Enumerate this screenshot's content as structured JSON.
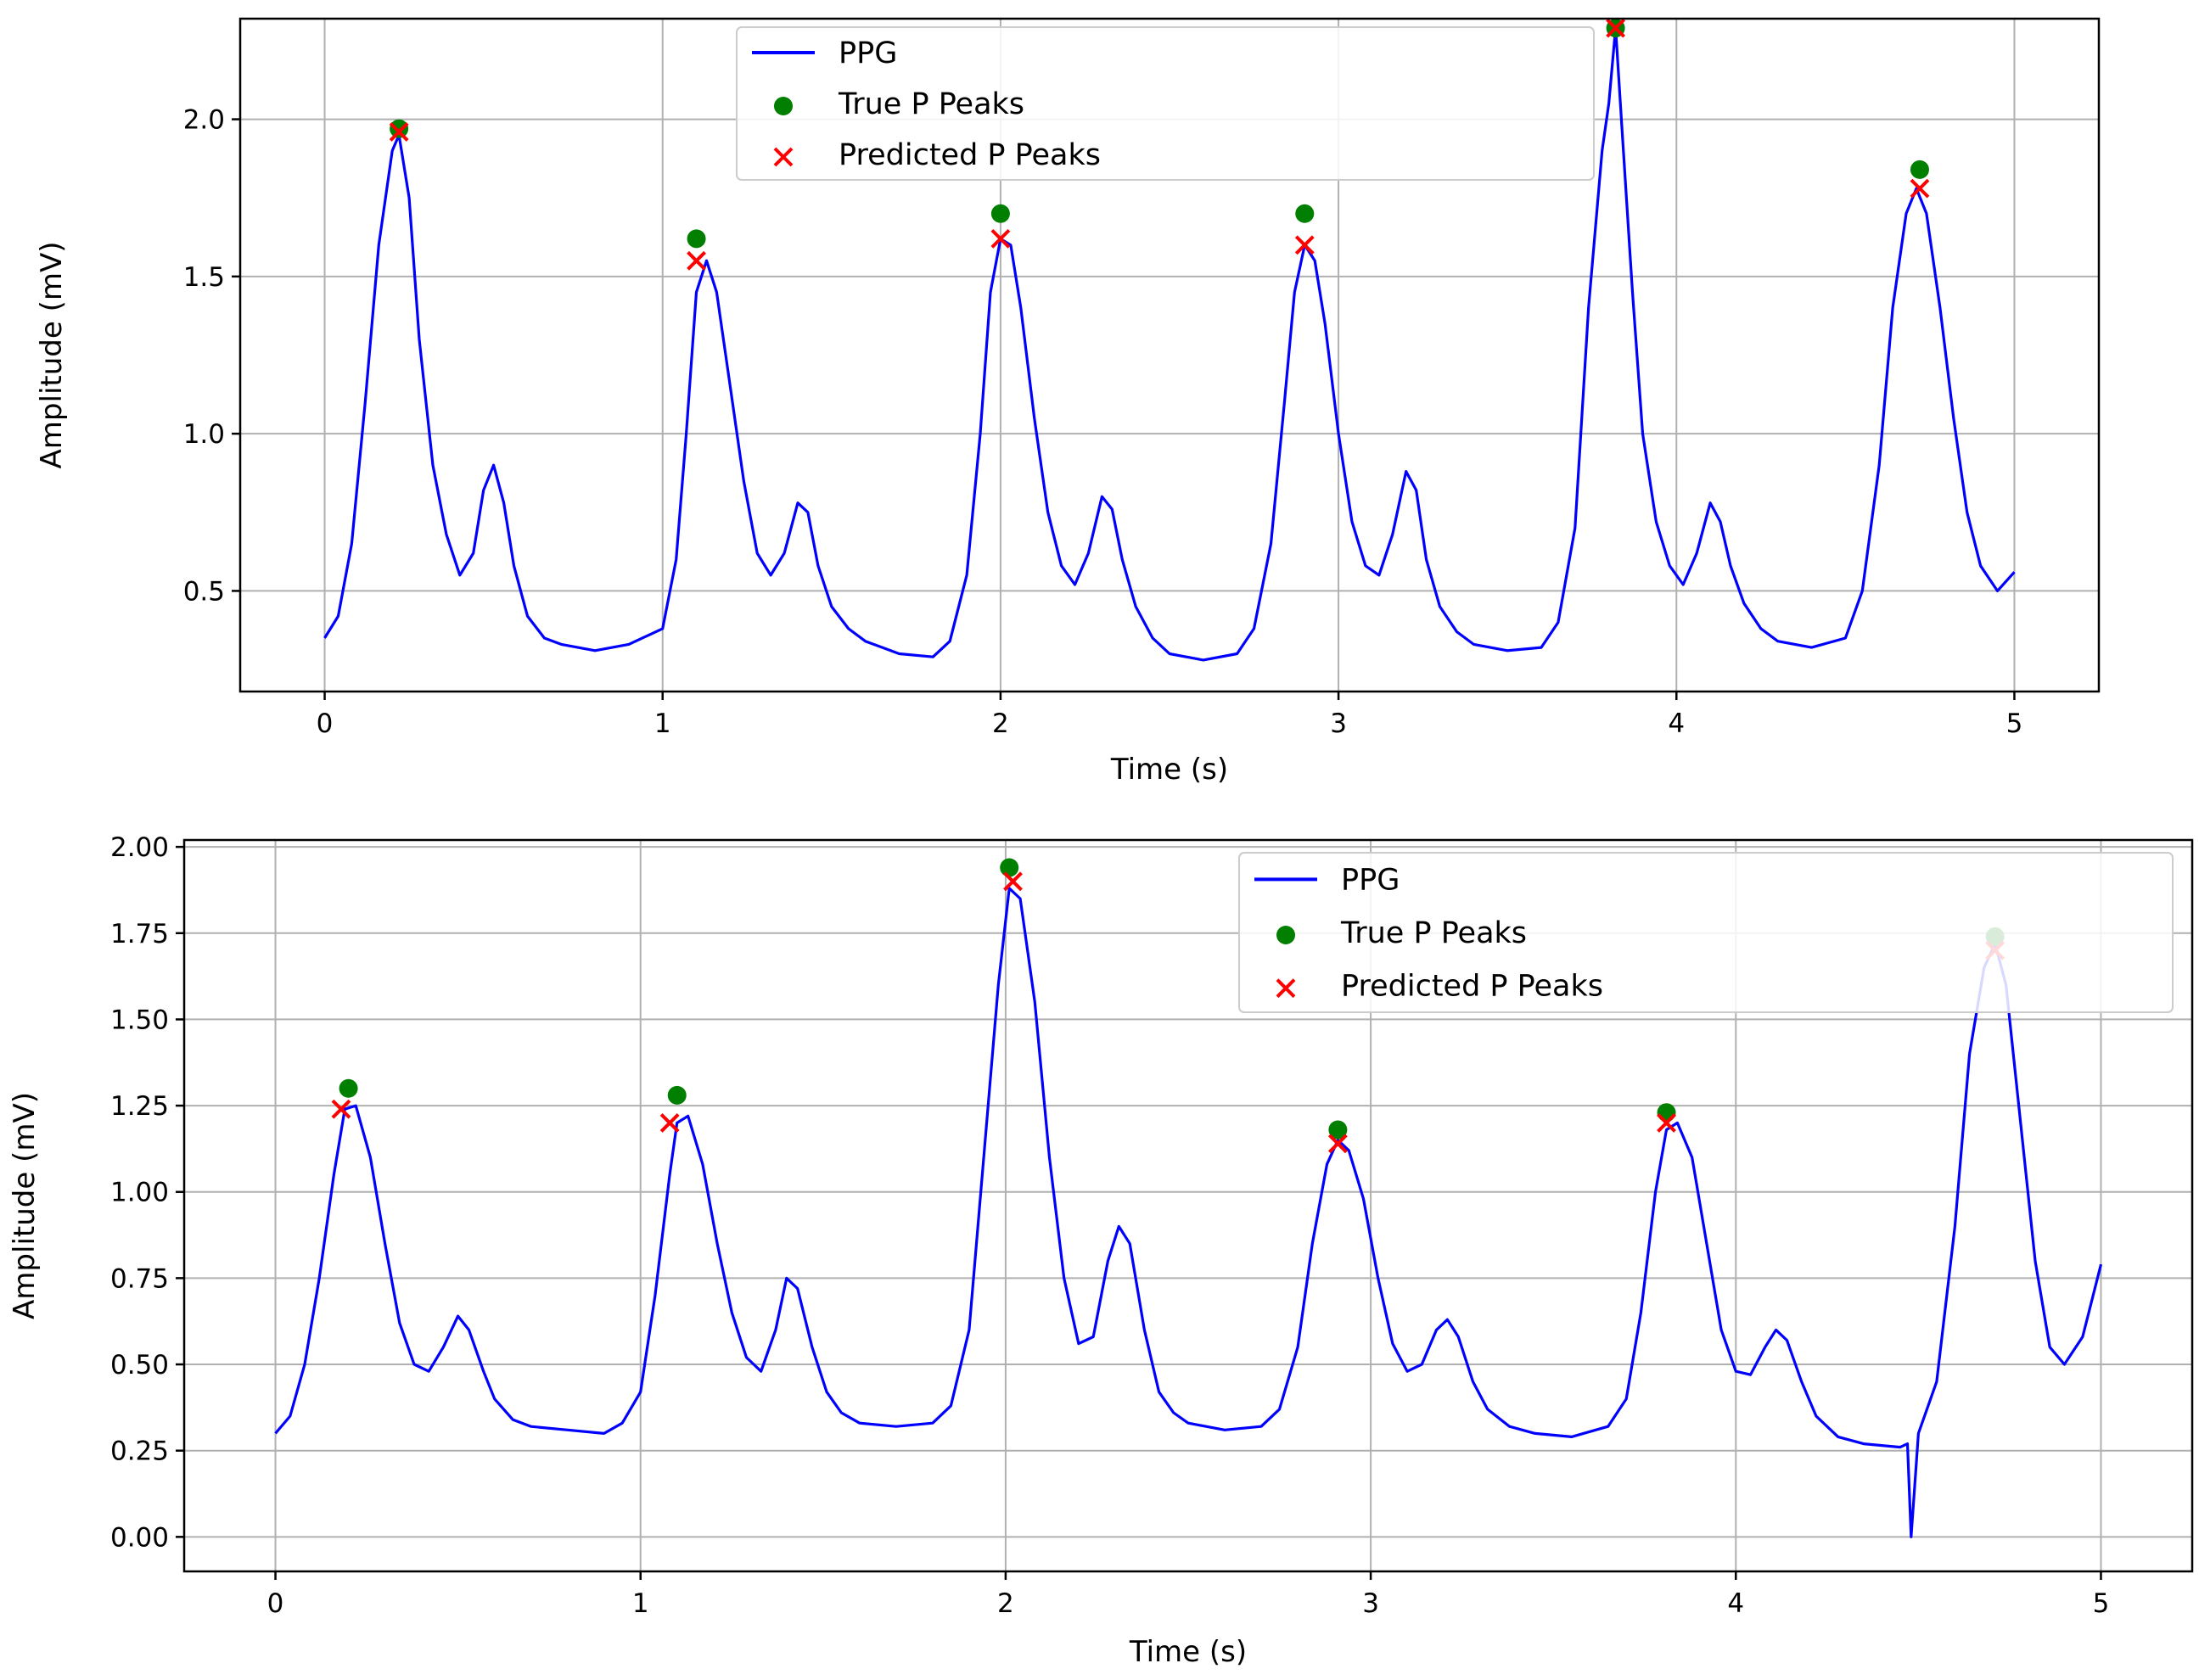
{
  "colors": {
    "ppg_line": "#0000ff",
    "true_peak": "#007f00",
    "predicted_peak": "#ff0000",
    "grid": "#b0b0b0"
  },
  "chart_data": [
    {
      "type": "line",
      "xlabel": "Time (s)",
      "ylabel": "Amplitude (mV)",
      "xlim": [
        -0.25,
        5.25
      ],
      "ylim": [
        0.18,
        2.32
      ],
      "x_ticks": [
        0,
        1,
        2,
        3,
        4,
        5
      ],
      "x_tick_labels": [
        "0",
        "1",
        "2",
        "3",
        "4",
        "5"
      ],
      "y_ticks": [
        0.5,
        1.0,
        1.5,
        2.0
      ],
      "y_tick_labels": [
        "0.5",
        "1.0",
        "1.5",
        "2.0"
      ],
      "grid": true,
      "legend_position": "upper-center",
      "legend": [
        "PPG",
        "True P Peaks",
        "Predicted P Peaks"
      ],
      "series": [
        {
          "name": "PPG",
          "kind": "line",
          "x": [
            0.0,
            0.04,
            0.08,
            0.12,
            0.16,
            0.2,
            0.22,
            0.25,
            0.28,
            0.32,
            0.36,
            0.4,
            0.44,
            0.47,
            0.5,
            0.53,
            0.56,
            0.6,
            0.65,
            0.7,
            0.8,
            0.9,
            1.0,
            1.04,
            1.07,
            1.1,
            1.13,
            1.16,
            1.2,
            1.24,
            1.28,
            1.32,
            1.36,
            1.4,
            1.43,
            1.46,
            1.5,
            1.55,
            1.6,
            1.7,
            1.8,
            1.85,
            1.9,
            1.94,
            1.97,
            2.0,
            2.03,
            2.06,
            2.1,
            2.14,
            2.18,
            2.22,
            2.26,
            2.3,
            2.33,
            2.36,
            2.4,
            2.45,
            2.5,
            2.6,
            2.7,
            2.75,
            2.8,
            2.84,
            2.87,
            2.9,
            2.93,
            2.96,
            3.0,
            3.04,
            3.08,
            3.12,
            3.16,
            3.2,
            3.23,
            3.26,
            3.3,
            3.35,
            3.4,
            3.5,
            3.6,
            3.65,
            3.7,
            3.74,
            3.78,
            3.8,
            3.82,
            3.84,
            3.87,
            3.9,
            3.94,
            3.98,
            4.02,
            4.06,
            4.1,
            4.13,
            4.16,
            4.2,
            4.25,
            4.3,
            4.4,
            4.5,
            4.55,
            4.6,
            4.64,
            4.68,
            4.71,
            4.74,
            4.78,
            4.82,
            4.86,
            4.9,
            4.95,
            5.0
          ],
          "y": [
            0.35,
            0.42,
            0.65,
            1.1,
            1.6,
            1.9,
            1.95,
            1.75,
            1.3,
            0.9,
            0.68,
            0.55,
            0.62,
            0.82,
            0.9,
            0.78,
            0.58,
            0.42,
            0.35,
            0.33,
            0.31,
            0.33,
            0.38,
            0.6,
            1.0,
            1.45,
            1.55,
            1.45,
            1.15,
            0.85,
            0.62,
            0.55,
            0.62,
            0.78,
            0.75,
            0.58,
            0.45,
            0.38,
            0.34,
            0.3,
            0.29,
            0.34,
            0.55,
            1.0,
            1.45,
            1.62,
            1.6,
            1.4,
            1.05,
            0.75,
            0.58,
            0.52,
            0.62,
            0.8,
            0.76,
            0.6,
            0.45,
            0.35,
            0.3,
            0.28,
            0.3,
            0.38,
            0.65,
            1.1,
            1.45,
            1.6,
            1.55,
            1.35,
            1.0,
            0.72,
            0.58,
            0.55,
            0.68,
            0.88,
            0.82,
            0.6,
            0.45,
            0.37,
            0.33,
            0.31,
            0.32,
            0.4,
            0.7,
            1.4,
            1.9,
            2.05,
            2.29,
            1.95,
            1.45,
            1.0,
            0.72,
            0.58,
            0.52,
            0.62,
            0.78,
            0.72,
            0.58,
            0.46,
            0.38,
            0.34,
            0.32,
            0.35,
            0.5,
            0.9,
            1.4,
            1.7,
            1.78,
            1.7,
            1.4,
            1.05,
            0.75,
            0.58,
            0.5,
            0.56
          ]
        },
        {
          "name": "True P Peaks",
          "kind": "scatter",
          "marker": "circle",
          "x": [
            0.22,
            1.1,
            2.0,
            2.9,
            3.82,
            4.72
          ],
          "y": [
            1.97,
            1.62,
            1.7,
            1.7,
            2.29,
            1.84
          ]
        },
        {
          "name": "Predicted P Peaks",
          "kind": "scatter",
          "marker": "x",
          "x": [
            0.22,
            1.1,
            2.0,
            2.9,
            3.82,
            4.72
          ],
          "y": [
            1.96,
            1.55,
            1.62,
            1.6,
            2.29,
            1.78
          ]
        }
      ]
    },
    {
      "type": "line",
      "xlabel": "Time (s)",
      "ylabel": "Amplitude (mV)",
      "xlim": [
        -0.25,
        5.25
      ],
      "ylim": [
        -0.1,
        2.02
      ],
      "x_ticks": [
        0,
        1,
        2,
        3,
        4,
        5
      ],
      "x_tick_labels": [
        "0",
        "1",
        "2",
        "3",
        "4",
        "5"
      ],
      "y_ticks": [
        0.0,
        0.25,
        0.5,
        0.75,
        1.0,
        1.25,
        1.5,
        1.75,
        2.0
      ],
      "y_tick_labels": [
        "0.00",
        "0.25",
        "0.50",
        "0.75",
        "1.00",
        "1.25",
        "1.50",
        "1.75",
        "2.00"
      ],
      "grid": true,
      "legend_position": "upper-right",
      "legend": [
        "PPG",
        "True P Peaks",
        "Predicted P Peaks"
      ],
      "series": [
        {
          "name": "PPG",
          "kind": "line",
          "x": [
            0.0,
            0.04,
            0.08,
            0.12,
            0.16,
            0.19,
            0.22,
            0.26,
            0.3,
            0.34,
            0.38,
            0.42,
            0.46,
            0.5,
            0.53,
            0.57,
            0.6,
            0.65,
            0.7,
            0.8,
            0.9,
            0.95,
            1.0,
            1.04,
            1.08,
            1.1,
            1.13,
            1.17,
            1.21,
            1.25,
            1.29,
            1.33,
            1.37,
            1.4,
            1.43,
            1.47,
            1.51,
            1.55,
            1.6,
            1.7,
            1.8,
            1.85,
            1.9,
            1.94,
            1.98,
            2.01,
            2.04,
            2.08,
            2.12,
            2.16,
            2.2,
            2.24,
            2.28,
            2.31,
            2.34,
            2.38,
            2.42,
            2.46,
            2.5,
            2.6,
            2.7,
            2.75,
            2.8,
            2.84,
            2.88,
            2.91,
            2.94,
            2.98,
            3.02,
            3.06,
            3.1,
            3.14,
            3.18,
            3.21,
            3.24,
            3.28,
            3.32,
            3.38,
            3.45,
            3.55,
            3.65,
            3.7,
            3.74,
            3.78,
            3.81,
            3.84,
            3.88,
            3.92,
            3.96,
            4.0,
            4.04,
            4.08,
            4.11,
            4.14,
            4.18,
            4.22,
            4.28,
            4.35,
            4.45,
            4.47,
            4.48,
            4.5,
            4.55,
            4.6,
            4.64,
            4.68,
            4.71,
            4.74,
            4.78,
            4.82,
            4.86,
            4.9,
            4.95,
            5.0
          ],
          "y": [
            0.3,
            0.35,
            0.5,
            0.75,
            1.05,
            1.24,
            1.25,
            1.1,
            0.85,
            0.62,
            0.5,
            0.48,
            0.55,
            0.64,
            0.6,
            0.48,
            0.4,
            0.34,
            0.32,
            0.31,
            0.3,
            0.33,
            0.42,
            0.7,
            1.05,
            1.2,
            1.22,
            1.08,
            0.85,
            0.65,
            0.52,
            0.48,
            0.6,
            0.75,
            0.72,
            0.55,
            0.42,
            0.36,
            0.33,
            0.32,
            0.33,
            0.38,
            0.6,
            1.1,
            1.6,
            1.88,
            1.85,
            1.55,
            1.1,
            0.75,
            0.56,
            0.58,
            0.8,
            0.9,
            0.85,
            0.6,
            0.42,
            0.36,
            0.33,
            0.31,
            0.32,
            0.37,
            0.55,
            0.85,
            1.08,
            1.15,
            1.12,
            0.98,
            0.75,
            0.56,
            0.48,
            0.5,
            0.6,
            0.63,
            0.58,
            0.45,
            0.37,
            0.32,
            0.3,
            0.29,
            0.32,
            0.4,
            0.65,
            1.0,
            1.18,
            1.2,
            1.1,
            0.85,
            0.6,
            0.48,
            0.47,
            0.55,
            0.6,
            0.57,
            0.45,
            0.35,
            0.29,
            0.27,
            0.26,
            0.27,
            0.0,
            0.3,
            0.45,
            0.9,
            1.4,
            1.65,
            1.72,
            1.6,
            1.2,
            0.8,
            0.55,
            0.5,
            0.58,
            0.79
          ]
        },
        {
          "name": "True P Peaks",
          "kind": "scatter",
          "marker": "circle",
          "x": [
            0.2,
            1.1,
            2.01,
            2.91,
            3.81,
            4.71
          ],
          "y": [
            1.3,
            1.28,
            1.94,
            1.18,
            1.23,
            1.74
          ]
        },
        {
          "name": "Predicted P Peaks",
          "kind": "scatter",
          "marker": "x",
          "x": [
            0.18,
            1.08,
            2.02,
            2.91,
            3.81,
            4.71
          ],
          "y": [
            1.24,
            1.2,
            1.9,
            1.14,
            1.2,
            1.7
          ]
        }
      ]
    }
  ]
}
